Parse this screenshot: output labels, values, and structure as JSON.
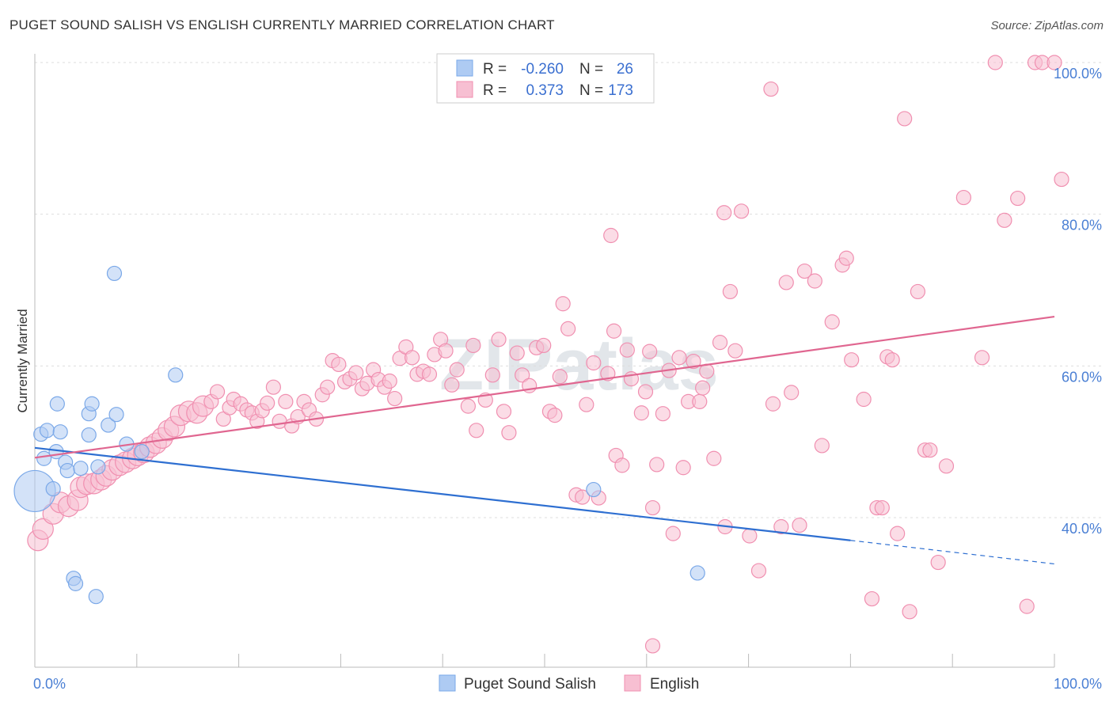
{
  "title": "PUGET SOUND SALISH VS ENGLISH CURRENTLY MARRIED CORRELATION CHART",
  "source": "Source: ZipAtlas.com",
  "watermark": "ZIPatlas",
  "colors": {
    "blue": "#7aa8e8",
    "blue_fill": "#aecbf3",
    "blue_line": "#2e6fd1",
    "pink": "#f08fb0",
    "pink_fill": "#f7bfd2",
    "pink_line": "#e06690",
    "axis_label": "#4a7fd4",
    "grid": "#dddddd"
  },
  "legend": {
    "rows": [
      {
        "r_label": "R =",
        "r_value": "-0.260",
        "n_label": "N =",
        "n_value": "26"
      },
      {
        "r_label": "R =",
        "r_value": "0.373",
        "n_label": "N =",
        "n_value": "173"
      }
    ]
  },
  "bottom_legend": [
    "Puget Sound Salish",
    "English"
  ],
  "chart_data": {
    "type": "scatter",
    "xlabel": "",
    "ylabel": "Currently Married",
    "xlim": [
      0,
      100
    ],
    "ylim": [
      21,
      104
    ],
    "x_tick_labels": [
      "0.0%",
      "100.0%"
    ],
    "y_ticks": [
      40,
      60,
      80,
      100
    ],
    "y_tick_labels": [
      "40.0%",
      "60.0%",
      "80.0%",
      "100.0%"
    ],
    "grid": true,
    "legend_position": "top-center",
    "series": [
      {
        "name": "Puget Sound Salish",
        "color": "blue",
        "trend": {
          "x0": 0,
          "y0": 49.2,
          "x1": 80,
          "y1": 37.0,
          "dash_to_x": 100,
          "dash_to_y": 33.9
        },
        "points": [
          [
            0,
            43.5,
            26
          ],
          [
            0.6,
            51,
            9
          ],
          [
            1.2,
            51.5,
            9
          ],
          [
            0.9,
            47.8,
            9
          ],
          [
            1.8,
            43.8,
            9
          ],
          [
            2.1,
            48.7,
            9
          ],
          [
            2.2,
            55,
            9
          ],
          [
            2.5,
            51.3,
            9
          ],
          [
            3,
            47.3,
            9
          ],
          [
            3.2,
            46.2,
            9
          ],
          [
            4.5,
            46.5,
            9
          ],
          [
            5.3,
            53.7,
            9
          ],
          [
            5.3,
            50.9,
            9
          ],
          [
            5.6,
            55,
            9
          ],
          [
            6.2,
            46.7,
            9
          ],
          [
            7.2,
            52.2,
            9
          ],
          [
            8,
            53.6,
            9
          ],
          [
            7.8,
            72.2,
            9
          ],
          [
            9,
            49.7,
            9
          ],
          [
            10.5,
            48.7,
            9
          ],
          [
            13.8,
            58.8,
            9
          ],
          [
            3.8,
            32,
            9
          ],
          [
            4,
            31.3,
            9
          ],
          [
            6,
            29.6,
            9
          ],
          [
            54.8,
            43.7,
            9
          ],
          [
            65,
            32.7,
            9
          ]
        ]
      },
      {
        "name": "English",
        "color": "pink",
        "trend": {
          "x0": 0,
          "y0": 47.9,
          "x1": 100,
          "y1": 66.5
        },
        "points": [
          [
            0.3,
            37,
            13
          ],
          [
            0.8,
            38.5,
            13
          ],
          [
            1.8,
            40.5,
            13
          ],
          [
            2.5,
            42,
            13
          ],
          [
            3.3,
            41.5,
            13
          ],
          [
            4.2,
            42.3,
            13
          ],
          [
            4.5,
            44,
            13
          ],
          [
            5.1,
            44.4,
            13
          ],
          [
            5.8,
            44.5,
            13
          ],
          [
            6.5,
            45,
            13
          ],
          [
            7,
            45.5,
            13
          ],
          [
            7.6,
            46.3,
            13
          ],
          [
            8.3,
            46.9,
            13
          ],
          [
            8.9,
            47.3,
            13
          ],
          [
            9.6,
            47.8,
            13
          ],
          [
            10.1,
            48.2,
            13
          ],
          [
            10.7,
            48.6,
            13
          ],
          [
            11.3,
            49.3,
            13
          ],
          [
            11.9,
            49.8,
            13
          ],
          [
            12.5,
            50.5,
            13
          ],
          [
            13.1,
            51.5,
            13
          ],
          [
            13.7,
            52,
            13
          ],
          [
            14.3,
            53.5,
            13
          ],
          [
            15.1,
            54,
            13
          ],
          [
            15.9,
            53.8,
            13
          ],
          [
            16.5,
            54.7,
            13
          ],
          [
            17.3,
            55.3,
            9
          ],
          [
            17.9,
            56.6,
            9
          ],
          [
            18.5,
            53,
            9
          ],
          [
            19.1,
            54.5,
            9
          ],
          [
            19.5,
            55.6,
            9
          ],
          [
            20.2,
            55,
            9
          ],
          [
            20.8,
            54.2,
            9
          ],
          [
            21.3,
            53.8,
            9
          ],
          [
            21.8,
            52.7,
            9
          ],
          [
            22.3,
            54.1,
            9
          ],
          [
            22.8,
            55.1,
            9
          ],
          [
            23.4,
            57.2,
            9
          ],
          [
            24,
            52.7,
            9
          ],
          [
            24.6,
            55.3,
            9
          ],
          [
            25.2,
            52.1,
            9
          ],
          [
            25.8,
            53.3,
            9
          ],
          [
            26.4,
            55.3,
            9
          ],
          [
            26.9,
            54.2,
            9
          ],
          [
            27.6,
            53,
            9
          ],
          [
            28.2,
            56.2,
            9
          ],
          [
            28.7,
            57.2,
            9
          ],
          [
            29.2,
            60.7,
            9
          ],
          [
            29.8,
            60.2,
            9
          ],
          [
            30.4,
            57.9,
            9
          ],
          [
            30.9,
            58.3,
            9
          ],
          [
            31.5,
            59.1,
            9
          ],
          [
            32.1,
            57,
            9
          ],
          [
            32.6,
            57.7,
            9
          ],
          [
            33.2,
            59.5,
            9
          ],
          [
            33.7,
            58.2,
            9
          ],
          [
            34.3,
            57.2,
            9
          ],
          [
            34.8,
            58,
            9
          ],
          [
            35.3,
            55.7,
            9
          ],
          [
            35.8,
            61,
            9
          ],
          [
            36.4,
            62.5,
            9
          ],
          [
            37,
            61.1,
            9
          ],
          [
            37.5,
            58.9,
            9
          ],
          [
            38.1,
            59.3,
            9
          ],
          [
            38.7,
            58.9,
            9
          ],
          [
            39.2,
            61.5,
            9
          ],
          [
            39.8,
            63.5,
            9
          ],
          [
            40.3,
            62,
            9
          ],
          [
            40.9,
            57.5,
            9
          ],
          [
            41.4,
            59.5,
            9
          ],
          [
            42.5,
            54.7,
            9
          ],
          [
            43,
            62.7,
            9
          ],
          [
            43.3,
            51.5,
            9
          ],
          [
            44.2,
            55.5,
            9
          ],
          [
            44.9,
            58.8,
            9
          ],
          [
            45.5,
            63.5,
            9
          ],
          [
            46,
            54,
            9
          ],
          [
            46.5,
            51.2,
            9
          ],
          [
            47.3,
            61.7,
            9
          ],
          [
            47.8,
            58.8,
            9
          ],
          [
            48.5,
            57.4,
            9
          ],
          [
            49.2,
            62.4,
            9
          ],
          [
            49.9,
            62.7,
            9
          ],
          [
            50.5,
            54,
            9
          ],
          [
            51,
            53.5,
            9
          ],
          [
            51.5,
            58.6,
            9
          ],
          [
            51.8,
            68.2,
            9
          ],
          [
            52.3,
            64.9,
            9
          ],
          [
            53.1,
            43,
            9
          ],
          [
            53.7,
            42.7,
            9
          ],
          [
            54.1,
            54.9,
            9
          ],
          [
            54.8,
            60.4,
            9
          ],
          [
            55.3,
            42.6,
            9
          ],
          [
            56.2,
            59,
            9
          ],
          [
            56.5,
            77.2,
            9
          ],
          [
            56.8,
            64.6,
            9
          ],
          [
            57,
            48.2,
            9
          ],
          [
            57.6,
            46.9,
            9
          ],
          [
            58.1,
            62.1,
            9
          ],
          [
            58.5,
            58.3,
            9
          ],
          [
            59.5,
            53.8,
            9
          ],
          [
            59.9,
            56.6,
            9
          ],
          [
            60.3,
            61.9,
            9
          ],
          [
            60.6,
            41.3,
            9
          ],
          [
            61,
            47,
            9
          ],
          [
            61.6,
            53.7,
            9
          ],
          [
            62.2,
            59.4,
            9
          ],
          [
            62.6,
            37.9,
            9
          ],
          [
            63.2,
            61.1,
            9
          ],
          [
            63.6,
            46.6,
            9
          ],
          [
            64.1,
            55.3,
            9
          ],
          [
            64.6,
            60.6,
            9
          ],
          [
            65.2,
            55.3,
            9
          ],
          [
            65.5,
            57.1,
            9
          ],
          [
            65.9,
            59.3,
            9
          ],
          [
            66.6,
            47.8,
            9
          ],
          [
            67.2,
            63.1,
            9
          ],
          [
            67.6,
            80.2,
            9
          ],
          [
            67.7,
            38.8,
            9
          ],
          [
            68.2,
            69.8,
            9
          ],
          [
            68.7,
            62,
            9
          ],
          [
            69.3,
            80.4,
            9
          ],
          [
            70.1,
            37.6,
            9
          ],
          [
            71,
            33,
            9
          ],
          [
            72.2,
            96.5,
            9
          ],
          [
            72.4,
            55,
            9
          ],
          [
            73.2,
            38.8,
            9
          ],
          [
            73.7,
            71,
            9
          ],
          [
            74.2,
            56.5,
            9
          ],
          [
            75,
            39,
            9
          ],
          [
            75.5,
            72.5,
            9
          ],
          [
            76.5,
            71.2,
            9
          ],
          [
            77.2,
            49.5,
            9
          ],
          [
            78.2,
            65.8,
            9
          ],
          [
            79.2,
            73.3,
            9
          ],
          [
            79.6,
            74.2,
            9
          ],
          [
            80.1,
            60.8,
            9
          ],
          [
            81.3,
            55.6,
            9
          ],
          [
            82.1,
            29.3,
            9
          ],
          [
            82.6,
            41.3,
            9
          ],
          [
            83.1,
            41.3,
            9
          ],
          [
            83.6,
            61.2,
            9
          ],
          [
            84.1,
            60.8,
            9
          ],
          [
            84.6,
            37.9,
            9
          ],
          [
            85.3,
            92.6,
            9
          ],
          [
            85.8,
            27.6,
            9
          ],
          [
            86.6,
            69.8,
            9
          ],
          [
            87.3,
            48.9,
            9
          ],
          [
            87.8,
            48.9,
            9
          ],
          [
            88.6,
            34.1,
            9
          ],
          [
            89.4,
            46.8,
            9
          ],
          [
            91.1,
            82.2,
            9
          ],
          [
            92.9,
            61.1,
            9
          ],
          [
            94.2,
            100,
            9
          ],
          [
            95.1,
            79.2,
            9
          ],
          [
            96.4,
            82.1,
            9
          ],
          [
            97.3,
            28.3,
            9
          ],
          [
            98.1,
            100,
            9
          ],
          [
            98.8,
            100,
            9
          ],
          [
            100,
            100,
            9
          ],
          [
            100.7,
            84.6,
            9
          ],
          [
            60.6,
            23.1,
            9
          ]
        ]
      }
    ]
  }
}
